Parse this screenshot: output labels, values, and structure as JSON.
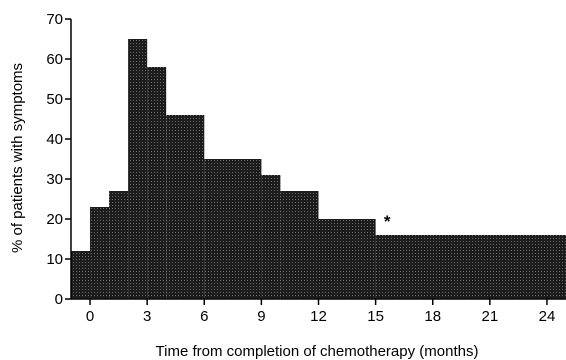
{
  "chart_data": {
    "type": "bar",
    "style": "step histogram, filled dark stippled bars, no gaps",
    "xlabel": "Time from completion of chemotherapy (months)",
    "ylabel": "% of patients with symptoms",
    "xlim": [
      -1,
      25
    ],
    "ylim": [
      0,
      70
    ],
    "x_ticks": [
      0,
      3,
      6,
      9,
      12,
      15,
      18,
      21,
      24
    ],
    "y_ticks": [
      0,
      10,
      20,
      30,
      40,
      50,
      60,
      70
    ],
    "grid": false,
    "bin_width_months": 1,
    "bars": [
      {
        "start": -1,
        "end": 0,
        "value": 12
      },
      {
        "start": 0,
        "end": 1,
        "value": 23
      },
      {
        "start": 1,
        "end": 2,
        "value": 27
      },
      {
        "start": 2,
        "end": 3,
        "value": 65
      },
      {
        "start": 3,
        "end": 4,
        "value": 58
      },
      {
        "start": 4,
        "end": 6,
        "value": 46
      },
      {
        "start": 6,
        "end": 9,
        "value": 35
      },
      {
        "start": 9,
        "end": 10,
        "value": 31
      },
      {
        "start": 10,
        "end": 12,
        "value": 27
      },
      {
        "start": 12,
        "end": 15,
        "value": 20
      },
      {
        "start": 15,
        "end": 25,
        "value": 16
      }
    ],
    "annotations": [
      {
        "text": "*",
        "x": 15.5,
        "y": 20
      }
    ],
    "colors": {
      "bar_fill": "#1c1c1c",
      "stipple": "#6a6a6a",
      "axis": "#000000"
    }
  }
}
